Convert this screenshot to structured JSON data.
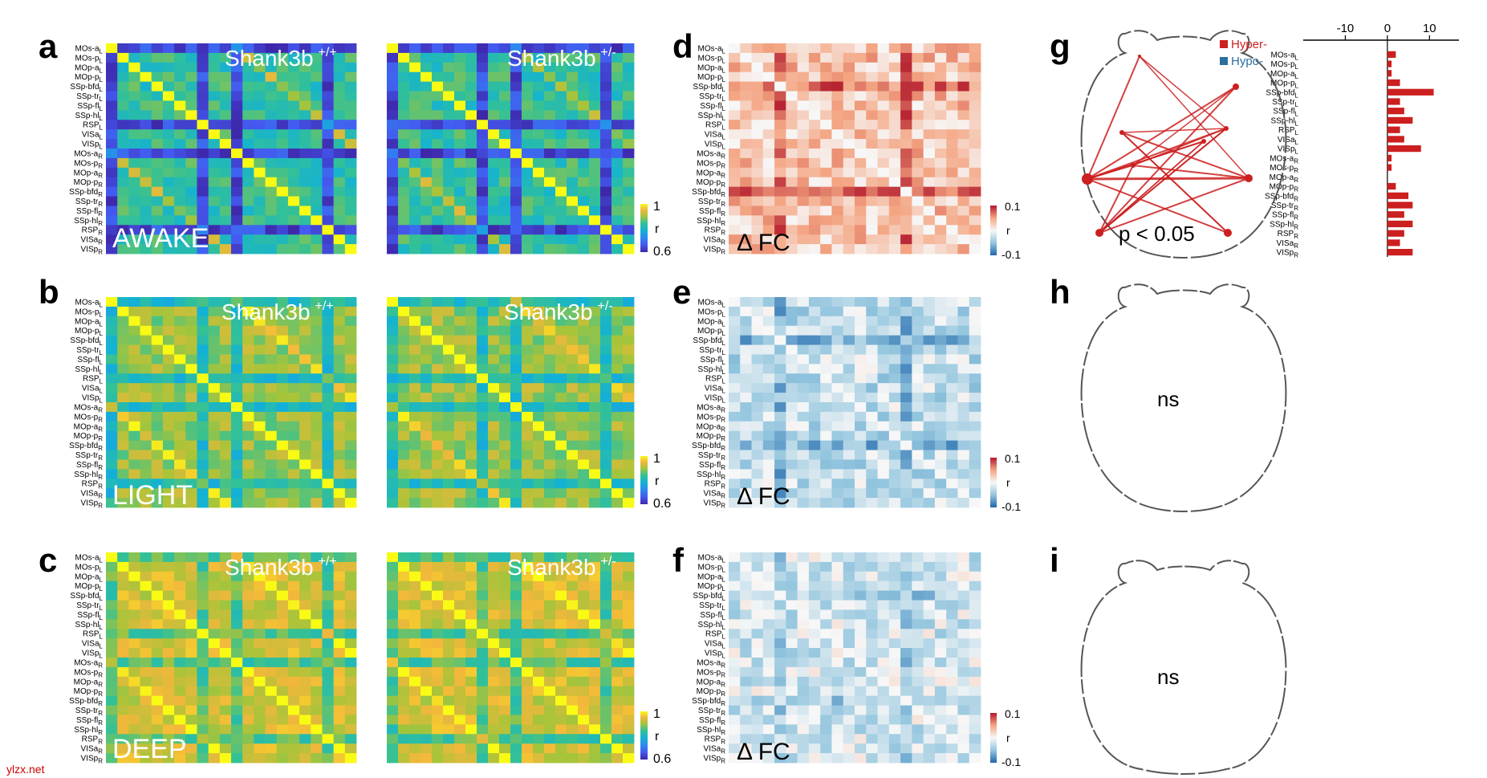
{
  "figure": {
    "panel_letters": [
      "a",
      "b",
      "c",
      "d",
      "e",
      "f",
      "g",
      "h",
      "i"
    ],
    "genotype_wt": "Shank3b",
    "genotype_wt_sup": "+/+",
    "genotype_het": "Shank3b",
    "genotype_het_sup": "+/-",
    "states": [
      "AWAKE",
      "LIGHT",
      "DEEP"
    ],
    "colorbar_label": "r",
    "colorbar_max": "1",
    "colorbar_min": "0.6",
    "diff_label": "Δ FC",
    "diff_cbar_label": "r",
    "diff_cbar_max": "0.1",
    "diff_cbar_min": "-0.1",
    "legend_hyper": "Hyper-",
    "legend_hypo": "Hypo-",
    "pvalue": "p < 0.05",
    "ns_label": "ns",
    "footer": "ylzx.net"
  },
  "rois": [
    {
      "name": "MOs-a",
      "sub": "L"
    },
    {
      "name": "MOs-p",
      "sub": "L"
    },
    {
      "name": "MOp-a",
      "sub": "L"
    },
    {
      "name": "MOp-p",
      "sub": "L"
    },
    {
      "name": "SSp-bfd",
      "sub": "L"
    },
    {
      "name": "SSp-tr",
      "sub": "L"
    },
    {
      "name": "SSp-fl",
      "sub": "L"
    },
    {
      "name": "SSp-hl",
      "sub": "L"
    },
    {
      "name": "RSP",
      "sub": "L"
    },
    {
      "name": "VISa",
      "sub": "L"
    },
    {
      "name": "VISp",
      "sub": "L"
    },
    {
      "name": "MOs-a",
      "sub": "R"
    },
    {
      "name": "MOs-p",
      "sub": "R"
    },
    {
      "name": "MOp-a",
      "sub": "R"
    },
    {
      "name": "MOp-p",
      "sub": "R"
    },
    {
      "name": "SSp-bfd",
      "sub": "R"
    },
    {
      "name": "SSp-tr",
      "sub": "R"
    },
    {
      "name": "SSp-fl",
      "sub": "R"
    },
    {
      "name": "SSp-hl",
      "sub": "R"
    },
    {
      "name": "RSP",
      "sub": "R"
    },
    {
      "name": "VISa",
      "sub": "R"
    },
    {
      "name": "VISp",
      "sub": "R"
    }
  ],
  "colors": {
    "hyper": "#cc1f1f",
    "hypo": "#2b6f9e",
    "brain_outline": "#444444"
  },
  "chart_data": [
    {
      "type": "heatmap",
      "panel": "a",
      "state": "AWAKE",
      "genotype": "Shank3b +/+",
      "clim": [
        0.6,
        1
      ],
      "mean_r": 0.82
    },
    {
      "type": "heatmap",
      "panel": "a",
      "state": "AWAKE",
      "genotype": "Shank3b +/-",
      "clim": [
        0.6,
        1
      ],
      "mean_r": 0.82
    },
    {
      "type": "heatmap",
      "panel": "b",
      "state": "LIGHT",
      "genotype": "Shank3b +/+",
      "clim": [
        0.6,
        1
      ],
      "mean_r": 0.88
    },
    {
      "type": "heatmap",
      "panel": "b",
      "state": "LIGHT",
      "genotype": "Shank3b +/-",
      "clim": [
        0.6,
        1
      ],
      "mean_r": 0.88
    },
    {
      "type": "heatmap",
      "panel": "c",
      "state": "DEEP",
      "genotype": "Shank3b +/+",
      "clim": [
        0.6,
        1
      ],
      "mean_r": 0.92
    },
    {
      "type": "heatmap",
      "panel": "c",
      "state": "DEEP",
      "genotype": "Shank3b +/-",
      "clim": [
        0.6,
        1
      ],
      "mean_r": 0.92
    },
    {
      "type": "heatmap",
      "panel": "d",
      "state": "AWAKE",
      "quantity": "Δ FC",
      "clim": [
        -0.1,
        0.1
      ],
      "bias": 0.03
    },
    {
      "type": "heatmap",
      "panel": "e",
      "state": "LIGHT",
      "quantity": "Δ FC",
      "clim": [
        -0.1,
        0.1
      ],
      "bias": -0.025
    },
    {
      "type": "heatmap",
      "panel": "f",
      "state": "DEEP",
      "quantity": "Δ FC",
      "clim": [
        -0.1,
        0.1
      ],
      "bias": -0.018
    },
    {
      "type": "bar",
      "panel": "g",
      "orientation": "horizontal",
      "xticks": [
        -10,
        0,
        10
      ],
      "xlim": [
        -20,
        17
      ],
      "categories": [
        "MOs-a L",
        "MOs-p L",
        "MOp-a L",
        "MOp-p L",
        "SSp-bfd L",
        "SSp-tr L",
        "SSp-fl L",
        "SSp-hl L",
        "RSP L",
        "VISa L",
        "VISp L",
        "MOs-a R",
        "MOs-p R",
        "MOp-a R",
        "MOp-p R",
        "SSp-bfd R",
        "SSp-tr R",
        "SSp-fl R",
        "SSp-hl R",
        "RSP R",
        "VISa R",
        "VISp R"
      ],
      "values": [
        2,
        1,
        1,
        3,
        11,
        3,
        4,
        6,
        3,
        4,
        8,
        1,
        1,
        0,
        2,
        5,
        6,
        4,
        6,
        4,
        3,
        6
      ]
    }
  ]
}
